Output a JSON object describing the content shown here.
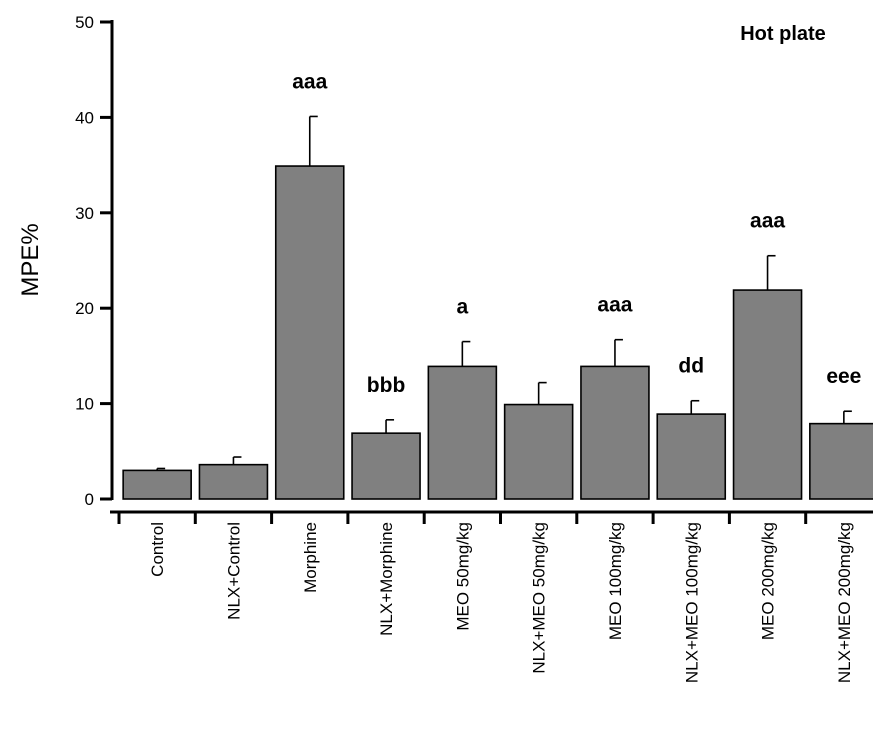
{
  "chart_data": {
    "type": "bar",
    "title": "Hot plate",
    "ylabel": "MPE%",
    "xlabel": "",
    "ylim": [
      0,
      50
    ],
    "yticks": [
      0,
      10,
      20,
      30,
      40,
      50
    ],
    "grid": false,
    "categories": [
      "Control",
      "NLX+Control",
      "Morphine",
      "NLX+Morphine",
      "MEO 50mg/kg",
      "NLX+MEO 50mg/kg",
      "MEO 100mg/kg",
      "NLX+MEO 100mg/kg",
      "MEO 200mg/kg",
      "NLX+MEO 200mg/kg"
    ],
    "values": [
      3.0,
      3.6,
      34.9,
      6.9,
      13.9,
      9.9,
      13.9,
      8.9,
      21.9,
      7.9
    ],
    "errors": [
      0.2,
      0.8,
      5.2,
      1.4,
      2.6,
      2.3,
      2.8,
      1.4,
      3.6,
      1.3
    ],
    "significance": [
      "",
      "",
      "aaa",
      "bbb",
      "a",
      "",
      "aaa",
      "dd",
      "aaa",
      "eee"
    ],
    "colors": {
      "bar": "#808080",
      "edge": "#000000",
      "axis": "#000000"
    }
  }
}
